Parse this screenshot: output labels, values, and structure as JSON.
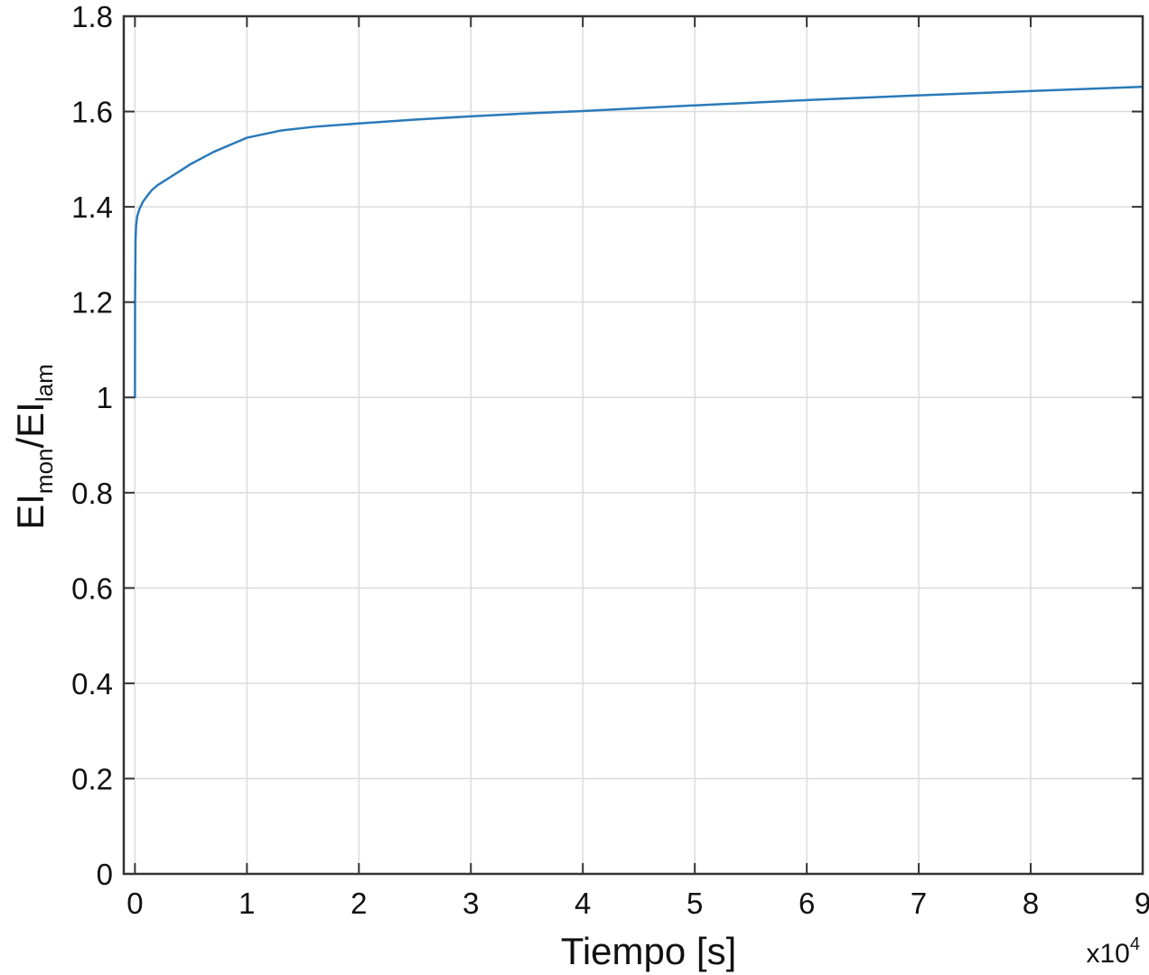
{
  "chart_data": {
    "type": "line",
    "xlabel": "Tiempo [s]",
    "ylabel": {
      "main1": "EI",
      "sub1": "mon",
      "sep": "/EI",
      "sub2": "lam"
    },
    "x_multiplier": {
      "base": "x10",
      "exponent": "4"
    },
    "xlim": [
      -0.1,
      9
    ],
    "ylim": [
      0,
      1.8
    ],
    "x_ticks": [
      0,
      1,
      2,
      3,
      4,
      5,
      6,
      7,
      8,
      9
    ],
    "y_ticks": [
      0,
      0.2,
      0.4,
      0.6,
      0.8,
      1,
      1.2,
      1.4,
      1.6,
      1.8
    ],
    "y_tick_labels": [
      "0",
      "0.2",
      "0.4",
      "0.6",
      "0.8",
      "1",
      "1.2",
      "1.4",
      "1.6",
      "1.8"
    ],
    "grid": true,
    "line_color": "#2a7ab9",
    "series": [
      {
        "x": [
          0,
          0.001,
          0.005,
          0.01,
          0.02,
          0.04,
          0.07,
          0.1,
          0.15,
          0.2,
          0.3,
          0.4,
          0.5,
          0.7,
          1,
          1.3,
          1.6,
          2,
          2.5,
          3,
          3.5,
          4,
          5,
          6,
          7,
          8,
          9
        ],
        "y": [
          1.0,
          1.2,
          1.33,
          1.36,
          1.38,
          1.395,
          1.41,
          1.42,
          1.435,
          1.445,
          1.46,
          1.475,
          1.49,
          1.515,
          1.545,
          1.56,
          1.568,
          1.575,
          1.583,
          1.59,
          1.596,
          1.601,
          1.613,
          1.624,
          1.634,
          1.643,
          1.652
        ]
      }
    ]
  }
}
